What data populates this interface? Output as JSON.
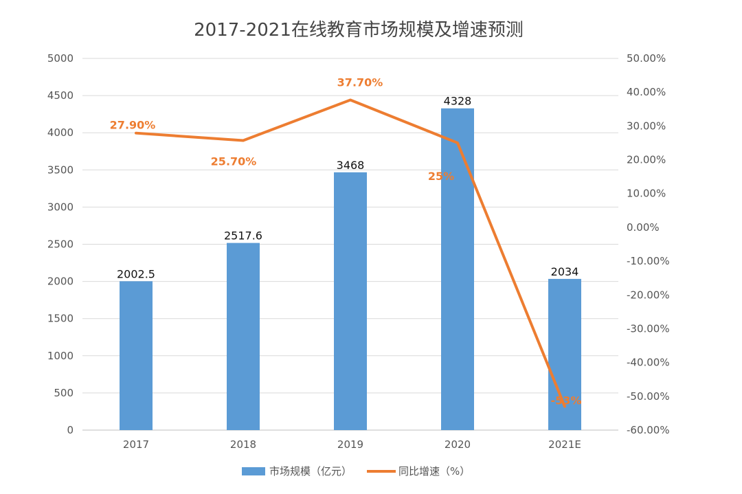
{
  "chart_data": {
    "type": "bar",
    "title": "2017-2021在线教育市场规模及增速预测",
    "categories": [
      "2017",
      "2018",
      "2019",
      "2020",
      "2021E"
    ],
    "series": [
      {
        "name": "市场规模（亿元）",
        "type": "bar",
        "axis": "left",
        "color": "#5B9BD5",
        "values": [
          2002.5,
          2517.6,
          3468,
          4328,
          2034
        ],
        "labels": [
          "2002.5",
          "2517.6",
          "3468",
          "4328",
          "2034"
        ]
      },
      {
        "name": "同比增速（%）",
        "type": "line",
        "axis": "right",
        "color": "#ED7D31",
        "values": [
          27.9,
          25.7,
          37.7,
          25,
          -53
        ],
        "labels": [
          "27.90%",
          "25.70%",
          "37.70%",
          "25%",
          "-53%"
        ]
      }
    ],
    "ylim_left": [
      0,
      5000
    ],
    "yticks_left": [
      "0",
      "500",
      "1000",
      "1500",
      "2000",
      "2500",
      "3000",
      "3500",
      "4000",
      "4500",
      "5000"
    ],
    "ylim_right": [
      -60,
      50
    ],
    "yticks_right": [
      "-60.00%",
      "-50.00%",
      "-40.00%",
      "-30.00%",
      "-20.00%",
      "-10.00%",
      "0.00%",
      "10.00%",
      "20.00%",
      "30.00%",
      "40.00%",
      "50.00%"
    ],
    "grid": true,
    "legend_position": "bottom"
  }
}
